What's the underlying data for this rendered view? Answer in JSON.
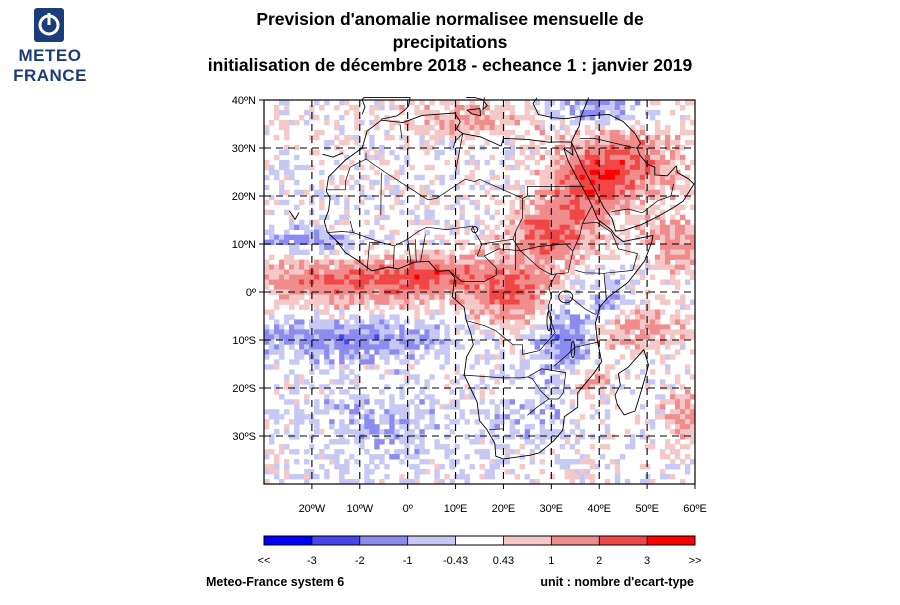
{
  "logo": {
    "line1": "METEO",
    "line2": "FRANCE"
  },
  "title": {
    "line1": "Prevision d'anomalie normalisee mensuelle de",
    "line2": "precipitations",
    "line3": "initialisation de décembre 2018  -  echeance 1 : janvier 2019"
  },
  "map": {
    "lat_labels": [
      "40ºN",
      "30ºN",
      "20ºN",
      "10ºN",
      "0º",
      "10ºS",
      "20ºS",
      "30ºS"
    ],
    "lat_values": [
      40,
      30,
      20,
      10,
      0,
      -10,
      -20,
      -30
    ],
    "lon_labels": [
      "20ºW",
      "10ºW",
      "0º",
      "10ºE",
      "20ºE",
      "30ºE",
      "40ºE",
      "50ºE",
      "60ºE"
    ],
    "lon_values": [
      -20,
      -10,
      0,
      10,
      20,
      30,
      40,
      50,
      60
    ],
    "lon_range": [
      -30,
      60
    ],
    "lat_range": [
      -40,
      40
    ],
    "gridlines": "dashed",
    "anomaly_regions": [
      {
        "name": "equatorial atlantic band",
        "sign": "positive",
        "intensity": 2
      },
      {
        "name": "gulf of guinea south band",
        "sign": "negative",
        "intensity": 1.5
      },
      {
        "name": "congo basin",
        "sign": "positive",
        "intensity": 2.5
      },
      {
        "name": "sudan and ethiopian highlands",
        "sign": "positive",
        "intensity": 2.5
      },
      {
        "name": "arabian peninsula",
        "sign": "positive",
        "intensity": 2
      },
      {
        "name": "east africa and tanzania",
        "sign": "negative",
        "intensity": 1.5
      },
      {
        "name": "south atlantic",
        "sign": "negative",
        "intensity": 1
      },
      {
        "name": "mediterranean",
        "sign": "positive",
        "intensity": 1
      },
      {
        "name": "madagascar region",
        "sign": "positive",
        "intensity": 1.5
      }
    ]
  },
  "colorbar": {
    "labels": [
      "<<",
      "-3",
      "-2",
      "-1",
      "-0.43",
      "0.43",
      "1",
      "2",
      "3",
      ">>"
    ],
    "thresholds": [
      -3,
      -2,
      -1,
      -0.43,
      0.43,
      1,
      2,
      3
    ],
    "colors": [
      "#0000ff",
      "#4646f0",
      "#8c8cf0",
      "#c8c8f5",
      "#ffffff",
      "#f5c8c8",
      "#f08c8c",
      "#f04646",
      "#ff0000"
    ]
  },
  "footer": {
    "left": "Meteo-France system 6",
    "right": "unit : nombre d'ecart-type"
  },
  "colors": {
    "brand": "#1b3d7a",
    "coast": "#000000"
  }
}
